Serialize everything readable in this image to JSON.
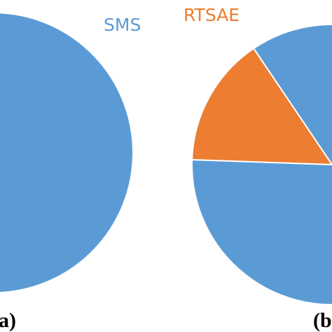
{
  "chart_data": [
    {
      "type": "pie",
      "panel_label": "(a)",
      "slices": [
        {
          "label": "SMS",
          "value": 100,
          "color": "#5B9BD5"
        }
      ]
    },
    {
      "type": "pie",
      "panel_label": "(b)",
      "slices": [
        {
          "label": "SMS",
          "value": 85,
          "color": "#5B9BD5"
        },
        {
          "label": "RTSAE",
          "value": 15,
          "color": "#ED7D31"
        }
      ]
    }
  ]
}
